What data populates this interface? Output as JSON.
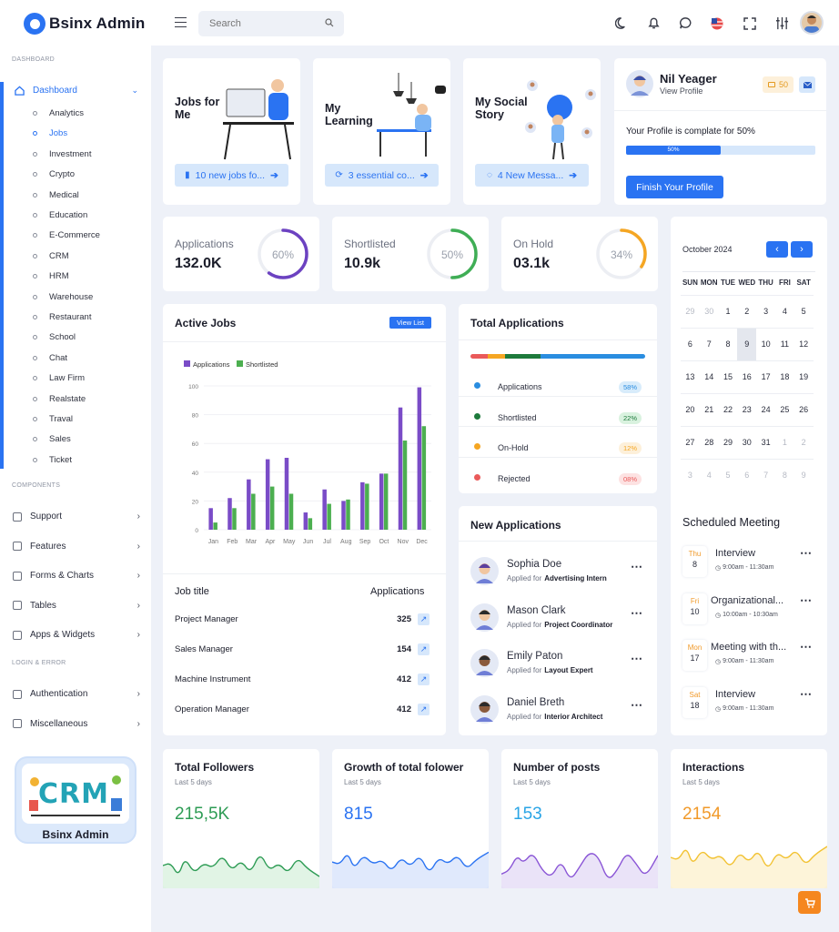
{
  "app": {
    "title": "Bsinx Admin"
  },
  "sidebar": {
    "dashboard_section": "DASHBOARD",
    "dashboard_label": "Dashboard",
    "sub_items": [
      "Analytics",
      "Jobs",
      "Investment",
      "Crypto",
      "Medical",
      "Education",
      "E-Commerce",
      "CRM",
      "HRM",
      "Warehouse",
      "Restaurant",
      "School",
      "Chat",
      "Law Firm",
      "Realstate",
      "Traval",
      "Sales",
      "Ticket"
    ],
    "components_section": "COMPONENTS",
    "component_items": [
      {
        "label": "Support",
        "icon": "headset-icon"
      },
      {
        "label": "Features",
        "icon": "edit-icon"
      },
      {
        "label": "Forms & Charts",
        "icon": "chart-icon"
      },
      {
        "label": "Tables",
        "icon": "grid-icon"
      },
      {
        "label": "Apps & Widgets",
        "icon": "database-icon"
      }
    ],
    "login_section": "LOGIN & ERROR",
    "login_items": [
      {
        "label": "Authentication",
        "icon": "lock-icon"
      },
      {
        "label": "Miscellaneous",
        "icon": "warning-icon"
      }
    ],
    "promo": {
      "logo_text": "CRM",
      "label": "Bsinx Admin"
    }
  },
  "header": {
    "search_placeholder": "Search"
  },
  "hero": [
    {
      "title": "Jobs for Me",
      "button": "10 new jobs fo..."
    },
    {
      "title": "My Learning",
      "button": "3 essential co..."
    },
    {
      "title": "My Social Story",
      "button": "4 New Messa..."
    }
  ],
  "profile": {
    "name": "Nil Yeager",
    "link": "View Profile",
    "badge": "50",
    "progress_text": "Your Profile is complate for 50%",
    "progress": 50,
    "progress_label": "50%",
    "button": "Finish Your Profile"
  },
  "stats": [
    {
      "label": "Applications",
      "value": "132.0K",
      "percent": 60,
      "percent_label": "60%",
      "color": "#6c42c1"
    },
    {
      "label": "Shortlisted",
      "value": "10.9k",
      "percent": 50,
      "percent_label": "50%",
      "color": "#3fae55"
    },
    {
      "label": "On Hold",
      "value": "03.1k",
      "percent": 34,
      "percent_label": "34%",
      "color": "#f5a623"
    }
  ],
  "calendar": {
    "month": "October 2024",
    "days": [
      "SUN",
      "MON",
      "TUE",
      "WED",
      "THU",
      "FRI",
      "SAT"
    ],
    "weeks": [
      [
        "29",
        "30",
        "1",
        "2",
        "3",
        "4",
        "5"
      ],
      [
        "6",
        "7",
        "8",
        "9",
        "10",
        "11",
        "12"
      ],
      [
        "13",
        "14",
        "15",
        "16",
        "17",
        "18",
        "19"
      ],
      [
        "20",
        "21",
        "22",
        "23",
        "24",
        "25",
        "26"
      ],
      [
        "27",
        "28",
        "29",
        "30",
        "31",
        "1",
        "2"
      ],
      [
        "3",
        "4",
        "5",
        "6",
        "7",
        "8",
        "9"
      ]
    ]
  },
  "active_jobs": {
    "title": "Active Jobs",
    "view_button": "View List",
    "col_title": "Job title",
    "col_apps": "Applications",
    "rows": [
      {
        "title": "Project Manager",
        "apps": "325"
      },
      {
        "title": "Sales Manager",
        "apps": "154"
      },
      {
        "title": "Machine Instrument",
        "apps": "412"
      },
      {
        "title": "Operation Manager",
        "apps": "412"
      }
    ]
  },
  "chart_data": {
    "type": "bar",
    "categories": [
      "Jan",
      "Feb",
      "Mar",
      "Apr",
      "May",
      "Jun",
      "Jul",
      "Aug",
      "Sep",
      "Oct",
      "Nov",
      "Dec"
    ],
    "series": [
      {
        "name": "Applications",
        "color": "#7a4cc7",
        "values": [
          15,
          22,
          35,
          49,
          50,
          12,
          28,
          20,
          33,
          39,
          85,
          99
        ]
      },
      {
        "name": "Shortlisted",
        "color": "#4caf50",
        "values": [
          5,
          15,
          25,
          30,
          25,
          8,
          18,
          21,
          32,
          39,
          62,
          72
        ]
      }
    ],
    "yticks": [
      "0",
      "20",
      "40",
      "60",
      "80",
      "100"
    ],
    "ylim": [
      0,
      100
    ],
    "legend": "top-left",
    "grid": true
  },
  "total_apps": {
    "title": "Total Applications",
    "items": [
      {
        "label": "Applications",
        "pct": "58%",
        "color": "#2a8de0",
        "bg": "#d8ecfb"
      },
      {
        "label": "Shortlisted",
        "pct": "22%",
        "color": "#1e7a3c",
        "bg": "#d9f2df"
      },
      {
        "label": "On-Hold",
        "pct": "12%",
        "color": "#f5a623",
        "bg": "#fdf0da"
      },
      {
        "label": "Rejected",
        "pct": "08%",
        "color": "#ea5a5a",
        "bg": "#fde2e2"
      }
    ]
  },
  "new_apps": {
    "title": "New Applications",
    "prefix": "Applied for",
    "items": [
      {
        "name": "Sophia Doe",
        "role": "Advertising Intern"
      },
      {
        "name": "Mason Clark",
        "role": "Project Coordinator"
      },
      {
        "name": "Emily Paton",
        "role": "Layout Expert"
      },
      {
        "name": "Daniel Breth",
        "role": "Interior Architect"
      }
    ]
  },
  "meetings": {
    "title": "Scheduled Meeting",
    "items": [
      {
        "day": "Thu",
        "date": "8",
        "title": "Interview",
        "time": "9:00am - 11:30am"
      },
      {
        "day": "Fri",
        "date": "10",
        "title": "Organizational...",
        "time": "10:00am - 10:30am"
      },
      {
        "day": "Mon",
        "date": "17",
        "title": "Meeting with th...",
        "time": "9:00am - 11:30am"
      },
      {
        "day": "Sat",
        "date": "18",
        "title": "Interview",
        "time": "9:00am - 11:30am"
      }
    ]
  },
  "bottom": [
    {
      "title": "Total Followers",
      "sub": "Last 5 days",
      "value": "215,5K",
      "color": "#2e9c55",
      "fill": "#d9f1de"
    },
    {
      "title": "Growth of total folower",
      "sub": "Last 5 days",
      "value": "815",
      "color": "#2a73f2",
      "fill": "#d8e4fb"
    },
    {
      "title": "Number of posts",
      "sub": "Last 5 days",
      "value": "153",
      "color": "#2aa5e6",
      "fill": "#e5dcf6"
    },
    {
      "title": "Interactions",
      "sub": "Last 5 days",
      "value": "2154",
      "color": "#f19a2a",
      "fill": "#fdf1cf"
    }
  ]
}
